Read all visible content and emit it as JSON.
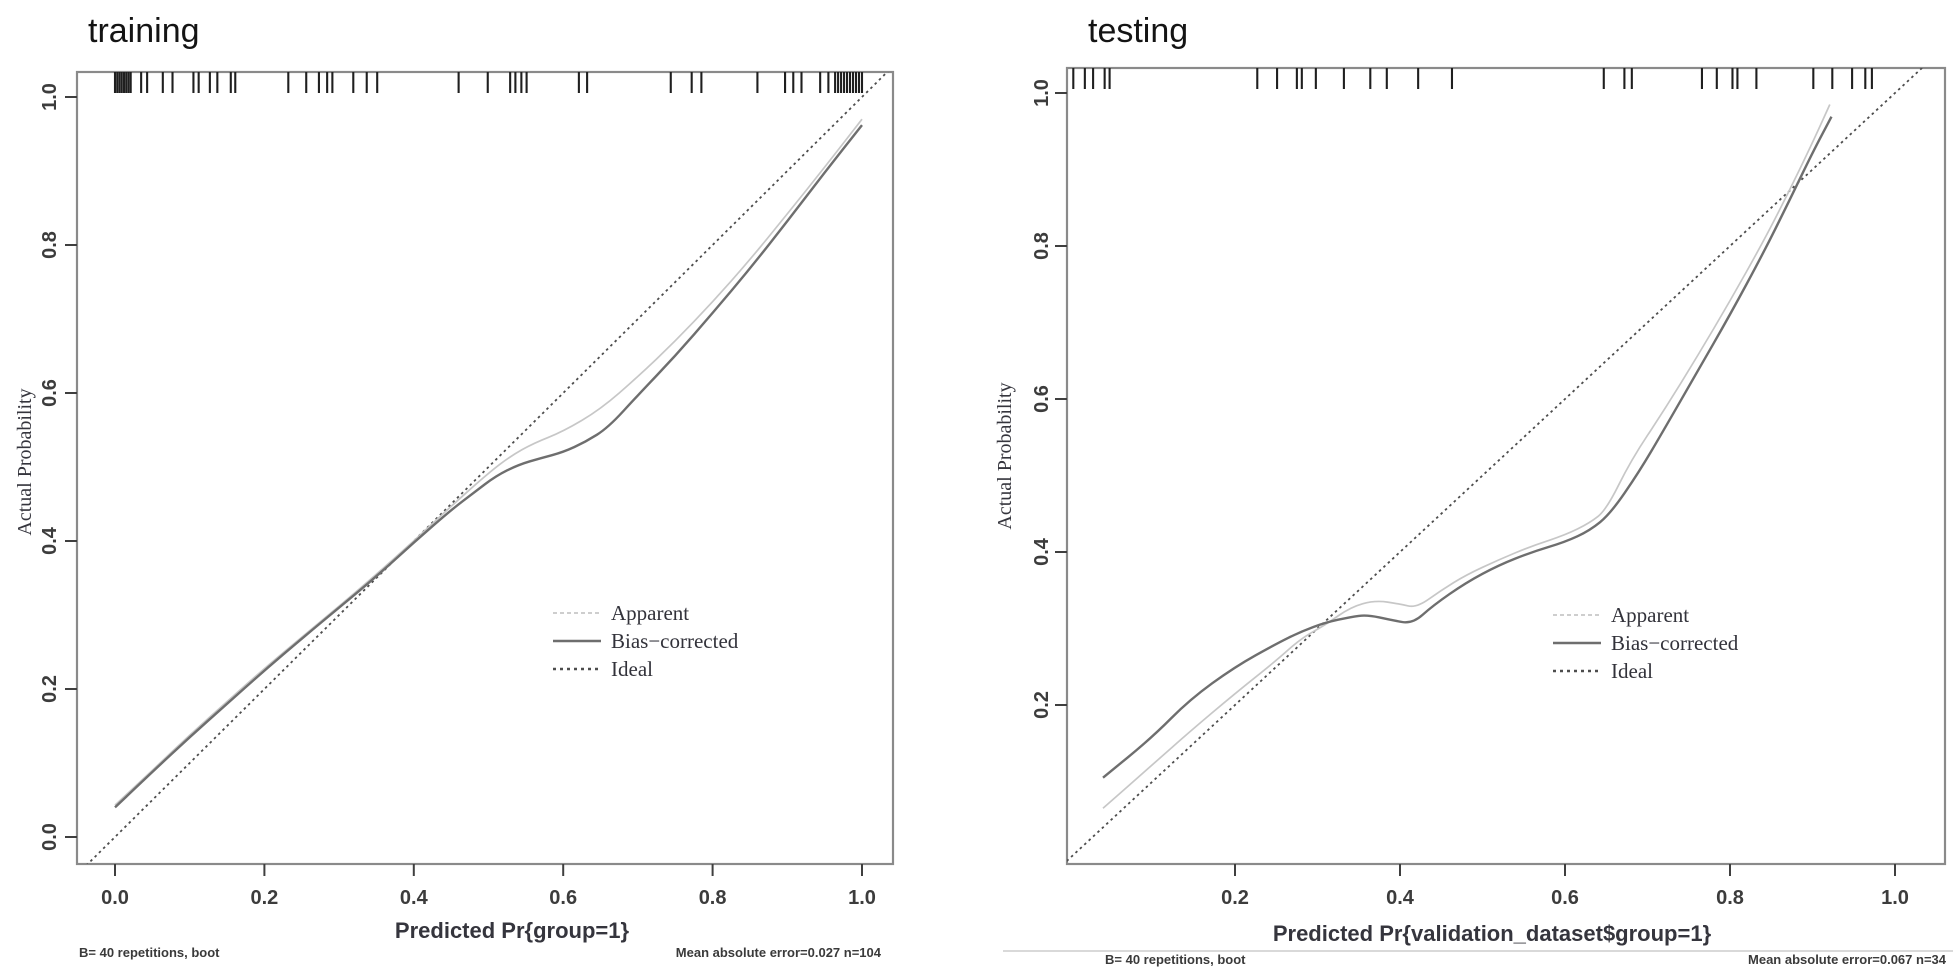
{
  "figure": {
    "kind": "R rms calibration curves, two panels",
    "background": "#ffffff"
  },
  "colors": {
    "title": "#141414",
    "box": "#8a8a8a",
    "rug": "#1f1f1f",
    "tick": "#3f3f3f",
    "tick_label": "#3c3c3c",
    "axis_title": "#35353d",
    "legend_text": "#32323a",
    "footnote": "#3a3a3a",
    "apparent_line": "#c7c7c7",
    "bias_line": "#6e6e6e",
    "ideal_line": "#4d4d4d",
    "separator": "#d9d9d9"
  },
  "chart_data": [
    {
      "type": "line",
      "title": "training",
      "xlabel": "Predicted Pr{group=1}",
      "ylabel": "Actual Probability",
      "footnote_left": "B= 40 repetitions, boot",
      "footnote_right": "Mean absolute error=0.027 n=104",
      "xlim": [
        -0.05,
        1.04
      ],
      "ylim": [
        -0.035,
        1.035
      ],
      "grid": false,
      "legend_position": "right-center",
      "x_ticks": [
        0.0,
        0.2,
        0.4,
        0.6,
        0.8,
        1.0
      ],
      "y_ticks": [
        0.0,
        0.2,
        0.4,
        0.6,
        0.8,
        1.0
      ],
      "legend": [
        {
          "label": "Apparent",
          "role": "apparent"
        },
        {
          "label": "Bias−corrected",
          "role": "bias"
        },
        {
          "label": "Ideal",
          "role": "ideal"
        }
      ],
      "rug_x": [
        0.0,
        0.003,
        0.006,
        0.009,
        0.012,
        0.015,
        0.018,
        0.021,
        0.035,
        0.043,
        0.064,
        0.077,
        0.105,
        0.112,
        0.127,
        0.137,
        0.155,
        0.161,
        0.232,
        0.256,
        0.273,
        0.284,
        0.291,
        0.319,
        0.337,
        0.351,
        0.46,
        0.499,
        0.529,
        0.536,
        0.544,
        0.551,
        0.621,
        0.632,
        0.744,
        0.772,
        0.785,
        0.86,
        0.897,
        0.908,
        0.919,
        0.944,
        0.955,
        0.964,
        0.968,
        0.972,
        0.976,
        0.98,
        0.984,
        0.988,
        0.992,
        0.996,
        1.0
      ],
      "series": [
        {
          "name": "Apparent",
          "role": "apparent",
          "x": [
            0.0,
            0.05,
            0.1,
            0.15,
            0.2,
            0.25,
            0.3,
            0.35,
            0.4,
            0.45,
            0.5,
            0.53,
            0.56,
            0.6,
            0.65,
            0.7,
            0.75,
            0.8,
            0.85,
            0.9,
            0.95,
            1.0
          ],
          "y": [
            0.043,
            0.09,
            0.138,
            0.183,
            0.228,
            0.27,
            0.312,
            0.355,
            0.4,
            0.447,
            0.492,
            0.515,
            0.532,
            0.548,
            0.578,
            0.622,
            0.67,
            0.723,
            0.78,
            0.842,
            0.905,
            0.97
          ]
        },
        {
          "name": "Bias-corrected",
          "role": "bias",
          "x": [
            0.0,
            0.05,
            0.1,
            0.15,
            0.2,
            0.25,
            0.3,
            0.35,
            0.4,
            0.45,
            0.48,
            0.51,
            0.54,
            0.57,
            0.6,
            0.63,
            0.66,
            0.7,
            0.75,
            0.8,
            0.85,
            0.9,
            0.95,
            1.0
          ],
          "y": [
            0.04,
            0.088,
            0.135,
            0.18,
            0.225,
            0.268,
            0.31,
            0.352,
            0.398,
            0.442,
            0.465,
            0.488,
            0.503,
            0.512,
            0.52,
            0.534,
            0.553,
            0.597,
            0.65,
            0.708,
            0.768,
            0.832,
            0.898,
            0.962
          ]
        },
        {
          "name": "Ideal",
          "role": "ideal",
          "x": [
            -0.05,
            1.04
          ],
          "y": [
            -0.05,
            1.04
          ]
        }
      ]
    },
    {
      "type": "line",
      "title": "testing",
      "xlabel": "Predicted Pr{validation_dataset$group=1}",
      "ylabel": "Actual Probability",
      "footnote_left": "B= 40 repetitions, boot",
      "footnote_right": "Mean absolute error=0.067 n=34",
      "xlim": [
        0.0,
        1.06
      ],
      "ylim": [
        -0.01,
        1.03
      ],
      "grid": false,
      "legend_position": "right-center",
      "x_ticks": [
        0.2,
        0.4,
        0.6,
        0.8,
        1.0
      ],
      "y_ticks": [
        0.2,
        0.4,
        0.6,
        0.8,
        1.0
      ],
      "legend": [
        {
          "label": "Apparent",
          "role": "apparent"
        },
        {
          "label": "Bias−corrected",
          "role": "bias"
        },
        {
          "label": "Ideal",
          "role": "ideal"
        }
      ],
      "rug_x": [
        0.004,
        0.018,
        0.028,
        0.042,
        0.048,
        0.227,
        0.251,
        0.275,
        0.281,
        0.298,
        0.332,
        0.364,
        0.384,
        0.422,
        0.463,
        0.647,
        0.672,
        0.681,
        0.766,
        0.784,
        0.803,
        0.809,
        0.832,
        0.901,
        0.924,
        0.948,
        0.964,
        0.972
      ],
      "series": [
        {
          "name": "Apparent",
          "role": "apparent",
          "x": [
            0.04,
            0.1,
            0.145,
            0.2,
            0.25,
            0.28,
            0.31,
            0.34,
            0.37,
            0.4,
            0.42,
            0.45,
            0.48,
            0.52,
            0.56,
            0.6,
            0.63,
            0.65,
            0.68,
            0.72,
            0.76,
            0.8,
            0.84,
            0.87,
            0.9,
            0.921
          ],
          "y": [
            0.065,
            0.122,
            0.165,
            0.215,
            0.258,
            0.287,
            0.305,
            0.328,
            0.337,
            0.332,
            0.327,
            0.35,
            0.37,
            0.39,
            0.408,
            0.422,
            0.438,
            0.455,
            0.52,
            0.585,
            0.655,
            0.728,
            0.805,
            0.868,
            0.935,
            0.985
          ]
        },
        {
          "name": "Bias-corrected",
          "role": "bias",
          "x": [
            0.04,
            0.1,
            0.145,
            0.2,
            0.25,
            0.28,
            0.31,
            0.34,
            0.36,
            0.39,
            0.415,
            0.44,
            0.48,
            0.52,
            0.56,
            0.6,
            0.63,
            0.655,
            0.69,
            0.72,
            0.76,
            0.8,
            0.84,
            0.87,
            0.9,
            0.923
          ],
          "y": [
            0.105,
            0.158,
            0.207,
            0.25,
            0.28,
            0.296,
            0.308,
            0.315,
            0.318,
            0.311,
            0.306,
            0.33,
            0.36,
            0.383,
            0.4,
            0.413,
            0.428,
            0.45,
            0.505,
            0.56,
            0.635,
            0.71,
            0.79,
            0.855,
            0.922,
            0.969
          ]
        },
        {
          "name": "Ideal",
          "role": "ideal",
          "x": [
            -0.02,
            1.05
          ],
          "y": [
            -0.02,
            1.05
          ]
        }
      ]
    }
  ]
}
